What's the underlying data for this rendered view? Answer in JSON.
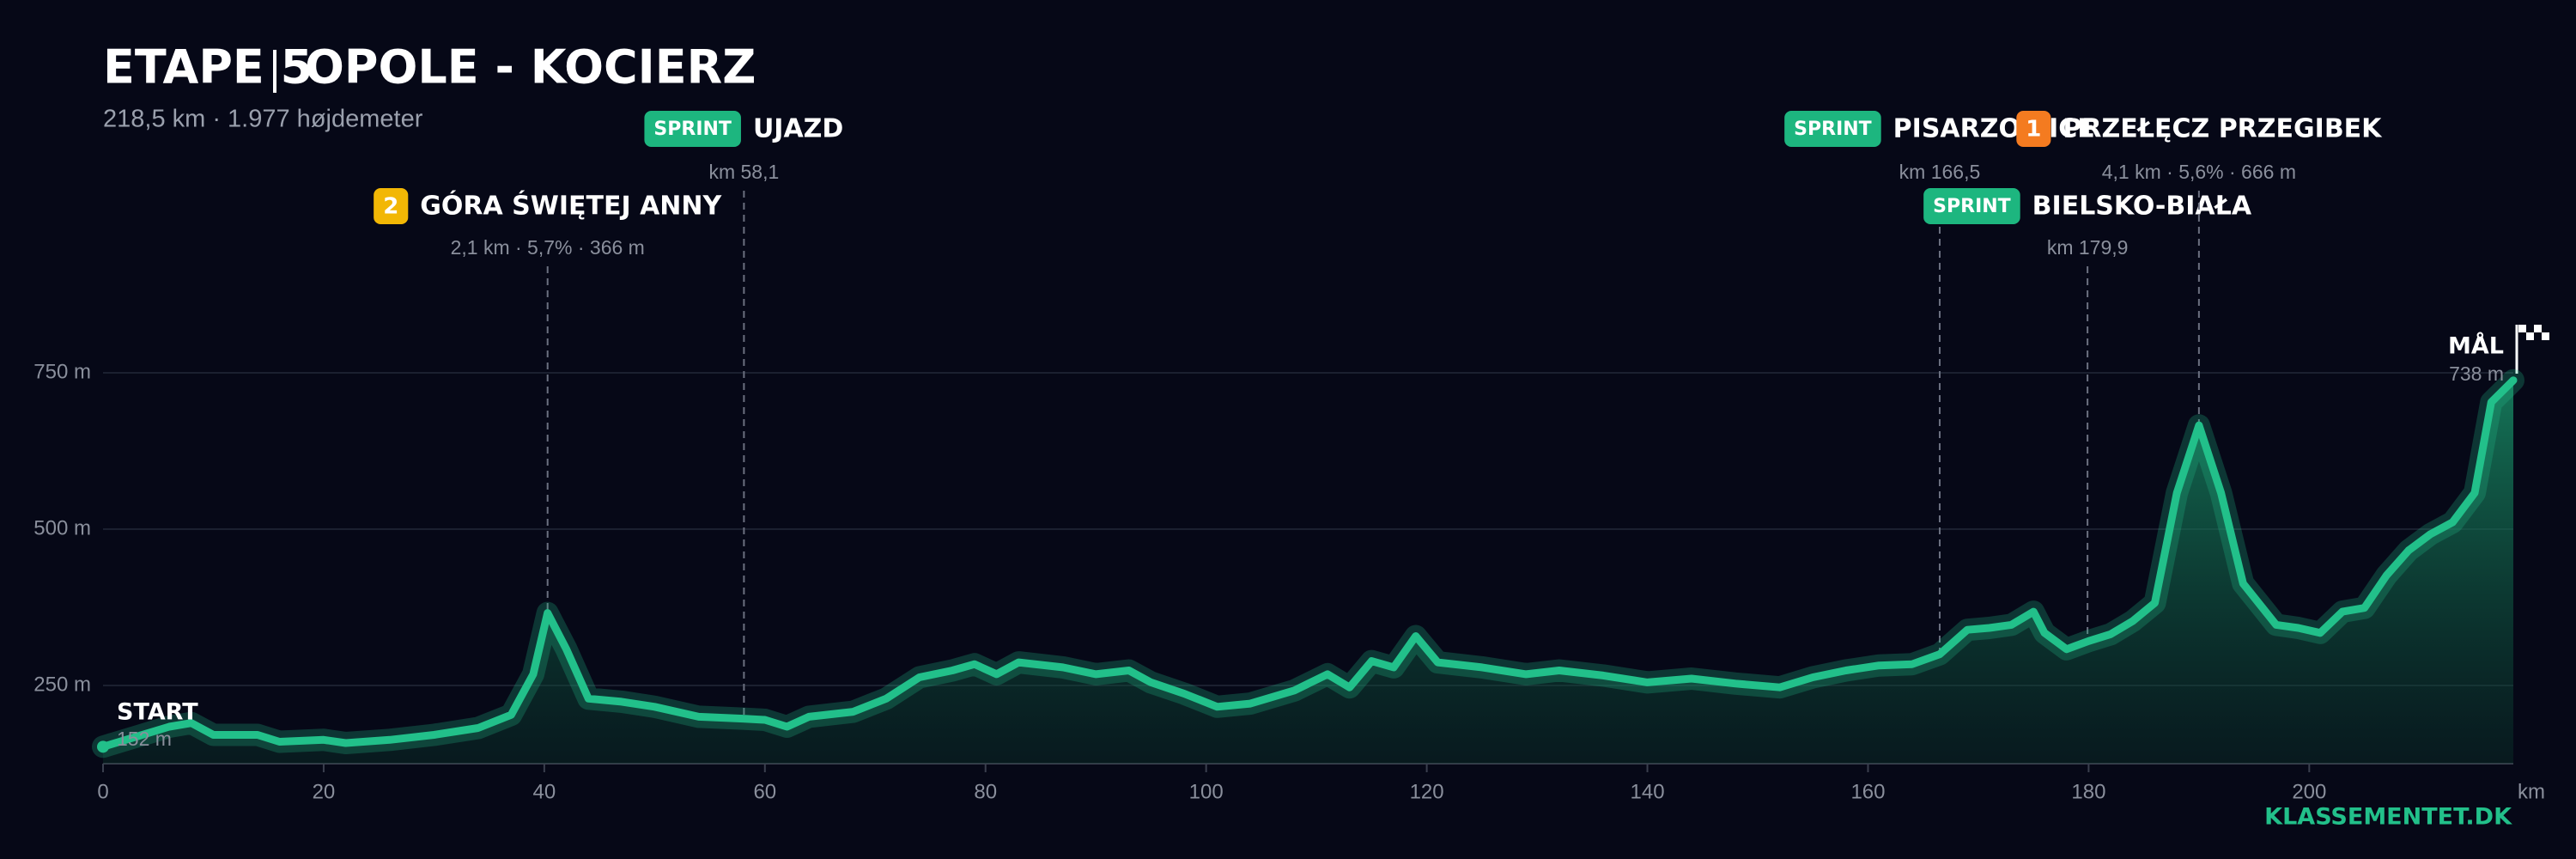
{
  "title": "ETAPE 5",
  "route": "OPOLE - KOCIERZ",
  "subtitle": "218,5 km  ·  1.977 højdemeter",
  "footer": "KLASSEMENTET.DK",
  "chart_data": {
    "type": "area",
    "color": "#22c08a",
    "x_label": "km",
    "xlim": [
      0,
      218.5
    ],
    "xticks": [
      0,
      20,
      40,
      60,
      80,
      100,
      120,
      140,
      160,
      180,
      200
    ],
    "ylim": [
      125,
      1000
    ],
    "yticks": [
      {
        "value": 250,
        "label": "250 m"
      },
      {
        "value": 500,
        "label": "500 m"
      },
      {
        "value": 750,
        "label": "750 m"
      }
    ],
    "grid": true,
    "x": [
      0,
      3,
      6,
      8,
      10,
      14,
      16,
      20,
      22,
      26,
      30,
      34,
      37,
      39,
      40.3,
      42,
      44,
      47,
      50,
      54,
      58,
      60,
      62,
      64,
      68,
      71,
      74,
      77,
      79,
      81,
      83,
      87,
      90,
      93,
      95,
      98,
      101,
      104,
      108,
      111,
      113,
      115,
      117,
      119,
      121,
      125,
      129,
      132,
      136,
      140,
      144,
      148,
      152,
      155,
      158,
      161,
      164,
      166.5,
      169,
      171,
      173,
      175,
      176,
      178,
      180,
      182,
      184,
      186,
      188,
      190,
      192,
      194,
      197,
      199,
      201,
      203,
      205,
      207,
      209,
      211,
      213,
      215,
      216.5,
      218.5
    ],
    "values": [
      152,
      168,
      184,
      190,
      171,
      171,
      160,
      163,
      158,
      163,
      171,
      182,
      203,
      268,
      366,
      308,
      229,
      224,
      216,
      200,
      197,
      195,
      184,
      200,
      208,
      229,
      263,
      274,
      284,
      268,
      287,
      279,
      268,
      274,
      255,
      237,
      216,
      221,
      242,
      268,
      247,
      289,
      279,
      329,
      287,
      279,
      268,
      274,
      266,
      255,
      261,
      253,
      247,
      263,
      274,
      282,
      284,
      300,
      339,
      342,
      347,
      368,
      334,
      308,
      321,
      332,
      353,
      382,
      558,
      666,
      558,
      413,
      347,
      342,
      334,
      368,
      374,
      426,
      466,
      492,
      511,
      558,
      703,
      738
    ],
    "endpoints": [
      {
        "label": "START",
        "value": 152,
        "value_label": "152 m"
      },
      {
        "label": "MÅL",
        "value": 738,
        "value_label": "738 m"
      }
    ],
    "markers": [
      {
        "x": 40.3,
        "badge": "2",
        "badge_color": "#f2b705",
        "name": "GÓRA ŚWIĘTEJ ANNY",
        "detail": "2,1 km · 5,7% · 366 m"
      },
      {
        "x": 58.1,
        "badge": "SPRINT",
        "badge_color": "#1db67f",
        "name": "UJAZD",
        "detail": "km 58,1"
      },
      {
        "x": 166.5,
        "badge": "SPRINT",
        "badge_color": "#1db67f",
        "name": "PISARZOWICE",
        "detail": "km 166,5"
      },
      {
        "x": 179.9,
        "badge": "SPRINT",
        "badge_color": "#1db67f",
        "name": "BIELSKO-BIAŁA",
        "detail": "km 179,9"
      },
      {
        "x": 190,
        "badge": "1",
        "badge_color": "#f47b20",
        "name": "PRZEŁĘCZ PRZEGIBEK",
        "detail": "4,1 km · 5,6% · 666 m"
      }
    ]
  }
}
